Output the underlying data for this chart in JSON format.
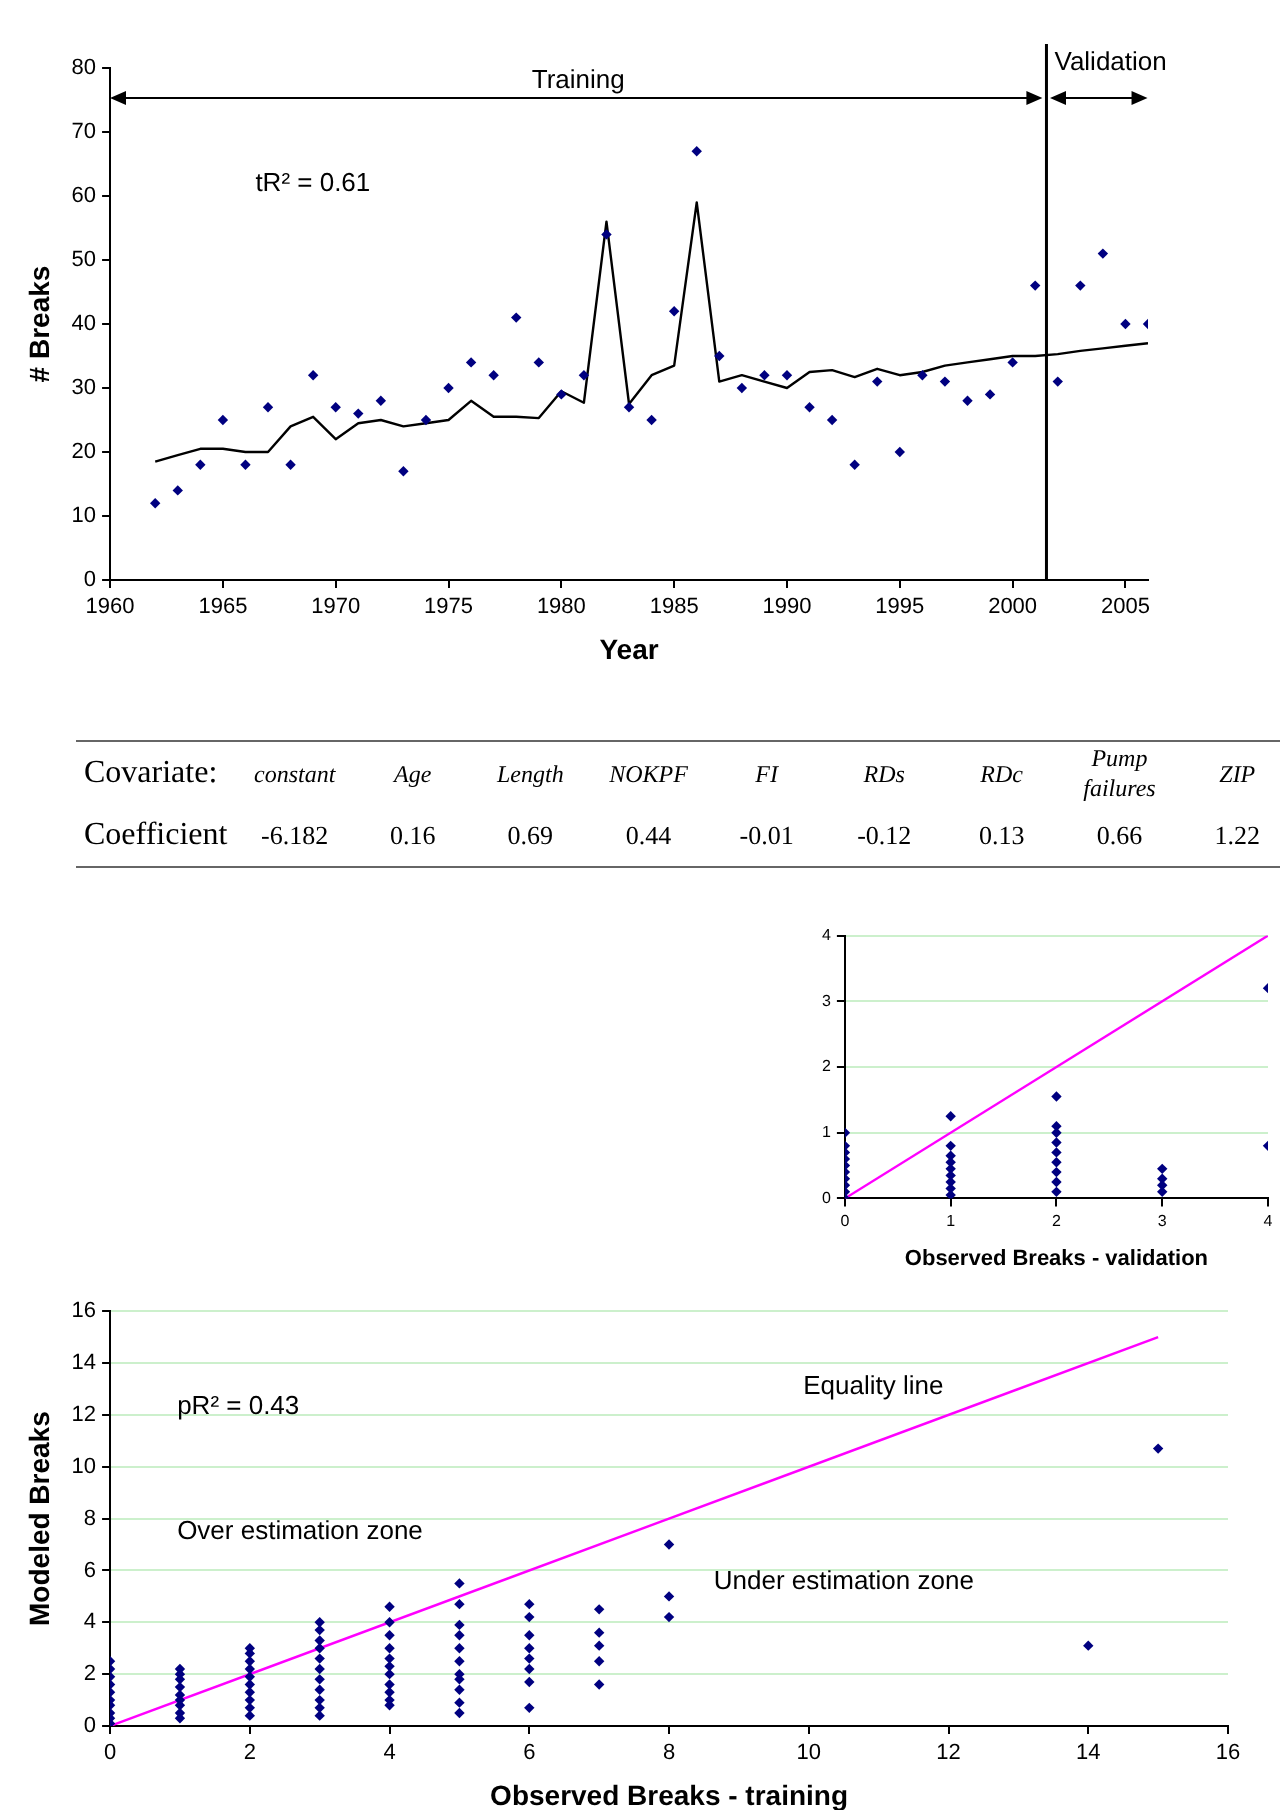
{
  "chart_data": [
    {
      "type": "line",
      "ylabel": "# Breaks",
      "xlabel": "Year",
      "xlim": [
        1960,
        2006
      ],
      "xticks": [
        1960,
        1965,
        1970,
        1975,
        1980,
        1985,
        1990,
        1995,
        2000,
        2005
      ],
      "ylim": [
        0,
        80
      ],
      "yticks": [
        0,
        10,
        20,
        30,
        40,
        50,
        60,
        70,
        80
      ],
      "grid": false,
      "legend": false,
      "annotations": [
        "Training",
        "Validation",
        "tR² = 0.61"
      ],
      "ref_lines": [
        {
          "axis": "x",
          "value": 2001.5,
          "color": "#000000"
        }
      ],
      "x": [
        1962,
        1963,
        1964,
        1965,
        1966,
        1967,
        1968,
        1969,
        1970,
        1971,
        1972,
        1973,
        1974,
        1975,
        1976,
        1977,
        1978,
        1979,
        1980,
        1981,
        1982,
        1983,
        1984,
        1985,
        1986,
        1987,
        1988,
        1989,
        1990,
        1991,
        1992,
        1993,
        1994,
        1995,
        1996,
        1997,
        1998,
        1999,
        2000,
        2001,
        2002,
        2003,
        2004,
        2005,
        2006
      ],
      "series": [
        {
          "type": "scatter",
          "marker": "diamond",
          "color": "#000080",
          "values": [
            12,
            14,
            18,
            25,
            18,
            27,
            18,
            32,
            27,
            26,
            28,
            17,
            25,
            30,
            34,
            32,
            41,
            34,
            29,
            32,
            54,
            27,
            25,
            42,
            67,
            35,
            30,
            32,
            32,
            27,
            25,
            18,
            31,
            20,
            32,
            31,
            28,
            29,
            34,
            46,
            31,
            46,
            51,
            40,
            40
          ]
        },
        {
          "type": "line",
          "color": "#000000",
          "values": [
            18.5,
            19.5,
            20.5,
            20.5,
            20,
            20,
            24,
            25.5,
            22,
            24.5,
            25,
            24,
            24.5,
            25,
            28,
            25.5,
            25.5,
            25.3,
            29.5,
            27.7,
            56,
            27.5,
            32,
            33.5,
            59,
            31,
            32,
            31,
            30,
            32.5,
            32.8,
            31.7,
            33,
            32,
            32.5,
            33.5,
            34,
            34.5,
            35,
            35,
            35.3,
            35.8,
            36.2,
            36.6,
            37
          ]
        }
      ]
    },
    {
      "type": "other",
      "xlabel": "Covariate:",
      "ylabel": "Coefficient",
      "categories": [
        "constant",
        "Age",
        "Length",
        "NOKPF",
        "FI",
        "RDs",
        "RDc",
        "Pump failures",
        "ZIP"
      ],
      "values": [
        -6.182,
        0.16,
        0.69,
        0.44,
        -0.01,
        -0.12,
        0.13,
        0.66,
        1.22
      ],
      "data_labels": true
    },
    {
      "type": "scatter",
      "xlabel": "Observed Breaks - validation",
      "xlim": [
        0,
        4
      ],
      "xticks": [
        0,
        1,
        2,
        3,
        4
      ],
      "ylim": [
        0,
        4
      ],
      "yticks": [
        0,
        1,
        2,
        3,
        4
      ],
      "grid": "y",
      "legend": false,
      "series": [
        {
          "type": "scatter",
          "marker": "diamond",
          "color": "#000080",
          "x": [
            0,
            0,
            0,
            0,
            0,
            0,
            0,
            0,
            0,
            0,
            1,
            1,
            1,
            1,
            1,
            1,
            1,
            1,
            1,
            2,
            2,
            2,
            2,
            2,
            2,
            2,
            2,
            2,
            3,
            3,
            3,
            3,
            4,
            4
          ],
          "values": [
            0,
            0.1,
            0.2,
            0.3,
            0.4,
            0.5,
            0.6,
            0.7,
            0.8,
            1,
            0.05,
            0.15,
            0.25,
            0.35,
            0.45,
            0.55,
            0.65,
            0.8,
            1.25,
            0.1,
            0.25,
            0.4,
            0.55,
            0.7,
            0.85,
            1,
            1.1,
            1.55,
            0.1,
            0.2,
            0.3,
            0.45,
            0.8,
            3.2
          ]
        },
        {
          "type": "line",
          "color": "#ff00ff",
          "x": [
            0,
            4
          ],
          "values": [
            0,
            4
          ]
        }
      ]
    },
    {
      "type": "scatter",
      "xlabel": "Observed Breaks - training",
      "ylabel": "Modeled Breaks",
      "xlim": [
        0,
        16
      ],
      "xticks": [
        0,
        2,
        4,
        6,
        8,
        10,
        12,
        14,
        16
      ],
      "ylim": [
        0,
        16
      ],
      "yticks": [
        0,
        2,
        4,
        6,
        8,
        10,
        12,
        14,
        16
      ],
      "grid": "y",
      "legend": false,
      "annotations": [
        "pR² = 0.43",
        "Over estimation zone",
        "Under estimation zone",
        "Equality line"
      ],
      "series": [
        {
          "type": "scatter",
          "marker": "diamond",
          "color": "#000080",
          "x": [
            0,
            0,
            0,
            0,
            0,
            0,
            0,
            0,
            0,
            0,
            1,
            1,
            1,
            1,
            1,
            1,
            1,
            1,
            1,
            2,
            2,
            2,
            2,
            2,
            2,
            2,
            2,
            2,
            2,
            3,
            3,
            3,
            3,
            3,
            3,
            3,
            3,
            3,
            3,
            3,
            4,
            4,
            4,
            4,
            4,
            4,
            4,
            4,
            4,
            4,
            4,
            5,
            5,
            5,
            5,
            5,
            5,
            5,
            5,
            5,
            5,
            5,
            6,
            6,
            6,
            6,
            6,
            6,
            6,
            6,
            7,
            7,
            7,
            7,
            7,
            8,
            8,
            8,
            14,
            15
          ],
          "values": [
            0.1,
            0.3,
            0.5,
            0.8,
            1,
            1.3,
            1.6,
            1.9,
            2.2,
            2.5,
            0.3,
            0.5,
            0.8,
            1,
            1.2,
            1.5,
            1.8,
            2,
            2.2,
            0.4,
            0.7,
            1,
            1.3,
            1.6,
            1.9,
            2.2,
            2.5,
            2.8,
            3,
            0.4,
            0.7,
            1,
            1.4,
            1.8,
            2.2,
            2.6,
            3,
            3.3,
            3.7,
            4,
            0.8,
            1,
            1.3,
            1.6,
            2,
            2.3,
            2.6,
            3,
            3.5,
            4,
            4.6,
            0.5,
            0.9,
            1.4,
            1.8,
            2,
            2.5,
            3,
            3.5,
            3.9,
            4.7,
            5.5,
            0.7,
            1.7,
            2.2,
            2.6,
            3,
            3.5,
            4.2,
            4.7,
            1.6,
            2.5,
            3.1,
            3.6,
            4.5,
            4.2,
            5,
            7,
            3.1,
            10.7
          ]
        },
        {
          "type": "line",
          "color": "#ff00ff",
          "x": [
            0,
            15
          ],
          "values": [
            0,
            15
          ]
        }
      ]
    }
  ]
}
